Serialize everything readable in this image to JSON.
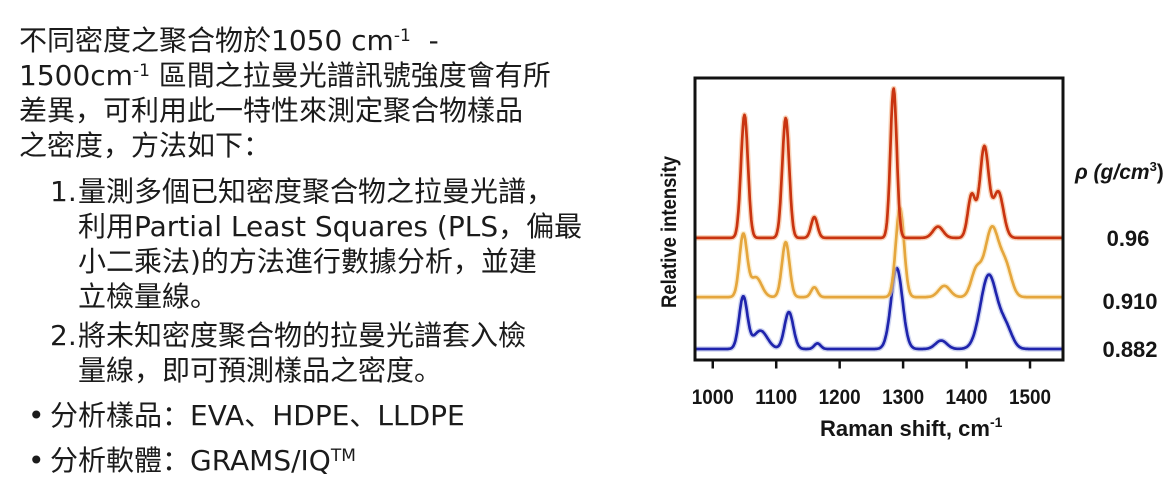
{
  "intro": {
    "lines": [
      {
        "pre": "不同密度之聚合物於1050 cm",
        "sup": "-1",
        "post": "  -"
      },
      {
        "pre": "1500cm",
        "sup": "-1",
        "post": " 區間之拉曼光譜訊號強度會有所"
      },
      {
        "pre": "差異，可利用此一特性來測定聚合物樣品",
        "sup": "",
        "post": ""
      },
      {
        "pre": "之密度，方法如下：",
        "sup": "",
        "post": ""
      }
    ]
  },
  "steps": [
    {
      "number": "1.",
      "lines": [
        "量測多個已知密度聚合物之拉曼光譜，",
        "利用Partial Least Squares (PLS，偏最",
        "小二乘法)的方法進行數據分析，並建",
        "立檢量線。"
      ]
    },
    {
      "number": "2.",
      "lines": [
        "將未知密度聚合物的拉曼光譜套入檢",
        "量線，即可預測樣品之密度。"
      ]
    }
  ],
  "bullets": [
    {
      "marker": "•",
      "text": "分析樣品：EVA、HDPE、LLDPE",
      "sup": ""
    },
    {
      "marker": "•",
      "text": "分析軟體：GRAMS/IQ",
      "sup": "TM"
    }
  ],
  "chart_data": {
    "type": "line",
    "title": "",
    "xlabel": {
      "pre": "Raman shift, cm",
      "sup": "-1"
    },
    "ylabel": "Relative intensity",
    "legend_title": {
      "pre": "ρ (g/cm",
      "sup": "3",
      "post": ")"
    },
    "x_ticks": [
      1000,
      1100,
      1200,
      1300,
      1400,
      1500
    ],
    "x_range": [
      972,
      1552
    ],
    "y_axis": "relative intensity, unlabeled (stacked offset spectra)",
    "grid": false,
    "legend_position": "right",
    "frame_color": "#111111",
    "peaks_format": "[center cm-1, height 0..1 of plot, sigma cm-1]",
    "series": [
      {
        "name": "density 0.96 g/cm3 spectrum",
        "label": "0.96",
        "label_color": "#c22048",
        "stroke": "#c93410",
        "halo": "#f2ae7f",
        "baseline": 0.433,
        "peaks": [
          [
            1050,
            0.436,
            5.5
          ],
          [
            1115,
            0.425,
            5.5
          ],
          [
            1160,
            0.074,
            5
          ],
          [
            1285,
            0.53,
            5
          ],
          [
            1355,
            0.04,
            8
          ],
          [
            1408,
            0.152,
            6
          ],
          [
            1428,
            0.322,
            7
          ],
          [
            1450,
            0.163,
            8
          ]
        ]
      },
      {
        "name": "density 0.910 g/cm3 spectrum",
        "label": "0.910",
        "label_color": "#ecc272",
        "stroke": "#e5a63d",
        "halo": "#f7e2ae",
        "baseline": 0.223,
        "peaks": [
          [
            1048,
            0.22,
            6
          ],
          [
            1068,
            0.07,
            9
          ],
          [
            1115,
            0.195,
            6
          ],
          [
            1160,
            0.035,
            5
          ],
          [
            1295,
            0.316,
            6.5
          ],
          [
            1365,
            0.04,
            9
          ],
          [
            1415,
            0.09,
            8
          ],
          [
            1440,
            0.245,
            11
          ],
          [
            1462,
            0.1,
            9
          ]
        ]
      },
      {
        "name": "density 0.882 g/cm3 spectrum",
        "label": "0.882",
        "label_color": "#2e52c0",
        "stroke": "#1f24ad",
        "halo": "#aab4e6",
        "baseline": 0.039,
        "peaks": [
          [
            1048,
            0.184,
            6.5
          ],
          [
            1075,
            0.065,
            11
          ],
          [
            1120,
            0.131,
            7
          ],
          [
            1165,
            0.02,
            5
          ],
          [
            1290,
            0.287,
            9
          ],
          [
            1360,
            0.03,
            9
          ],
          [
            1435,
            0.262,
            13
          ],
          [
            1462,
            0.07,
            10
          ]
        ]
      }
    ]
  }
}
